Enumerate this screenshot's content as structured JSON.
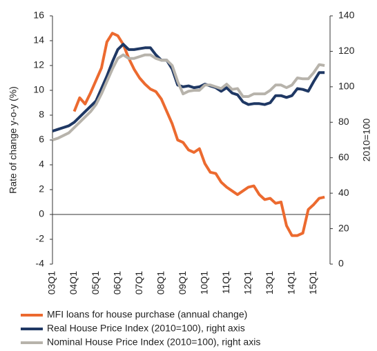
{
  "chart_data": {
    "type": "line",
    "categories": [
      "03Q1",
      null,
      null,
      null,
      "04Q1",
      null,
      null,
      null,
      "05Q1",
      null,
      null,
      null,
      "06Q1",
      null,
      null,
      null,
      "07Q1",
      null,
      null,
      null,
      "08Q1",
      null,
      null,
      null,
      "09Q1",
      null,
      null,
      null,
      "10Q1",
      null,
      null,
      null,
      "11Q1",
      null,
      null,
      null,
      "12Q1",
      null,
      null,
      null,
      "13Q1",
      null,
      null,
      null,
      "14Q1",
      null,
      null,
      null,
      "15Q1",
      null,
      null,
      null
    ],
    "ylabel": "Rate of change y-o-y (%)",
    "y2label": "2010=100",
    "ylim": [
      -4,
      16
    ],
    "yticks": [
      -4,
      -2,
      0,
      2,
      4,
      6,
      8,
      10,
      12,
      14,
      16
    ],
    "y2lim": [
      0,
      140
    ],
    "y2ticks": [
      0,
      20,
      40,
      60,
      80,
      100,
      120,
      140
    ],
    "grid": false,
    "series": [
      {
        "name": "MFI loans for house purchase (annual change)",
        "color": "#ec6a2f",
        "values": [
          null,
          null,
          null,
          null,
          8.3,
          9.4,
          8.9,
          9.8,
          10.8,
          11.8,
          13.9,
          14.6,
          14.4,
          13.7,
          12.6,
          11.7,
          11.0,
          10.5,
          10.1,
          9.9,
          9.3,
          8.3,
          7.3,
          6.0,
          5.8,
          5.2,
          5.0,
          5.3,
          4.1,
          3.4,
          3.3,
          2.6,
          2.2,
          1.9,
          1.6,
          1.9,
          2.2,
          2.3,
          1.6,
          1.2,
          1.3,
          0.9,
          1.0,
          -0.9,
          -1.7,
          -1.7,
          -1.5,
          0.4,
          0.8,
          1.3,
          1.4,
          null
        ]
      },
      {
        "name": "Real House Price Index (2010=100), right axis",
        "color": "#1f3864",
        "axis": "y2",
        "values": [
          75,
          76,
          77,
          78,
          80,
          83,
          86,
          89,
          92,
          99,
          106,
          114,
          121,
          124,
          121,
          121,
          121.5,
          122,
          122,
          118,
          115,
          115,
          110,
          101,
          100,
          100.5,
          99.5,
          100,
          101.5,
          100.5,
          99.5,
          97.5,
          99.5,
          96.5,
          95.5,
          91.5,
          90,
          90.5,
          90.5,
          90,
          91,
          95,
          95,
          94,
          95,
          99,
          98.5,
          97.5,
          103,
          108,
          108,
          null
        ]
      },
      {
        "name": "Nominal House Price Index (2010=100), right axis",
        "color": "#b7b3ab",
        "axis": "y2",
        "values": [
          70,
          71,
          72.5,
          74,
          77,
          80,
          83,
          86,
          90,
          96,
          103,
          110,
          116,
          118,
          116,
          116,
          117,
          118,
          118,
          116,
          115,
          115,
          112,
          103,
          96,
          97.5,
          98,
          98,
          101,
          101,
          100,
          99,
          101.5,
          98.5,
          99,
          94.5,
          94.5,
          96,
          96,
          96,
          98,
          101,
          101,
          99.5,
          101,
          105,
          104.5,
          104.5,
          108,
          112.5,
          112,
          null
        ]
      }
    ]
  }
}
